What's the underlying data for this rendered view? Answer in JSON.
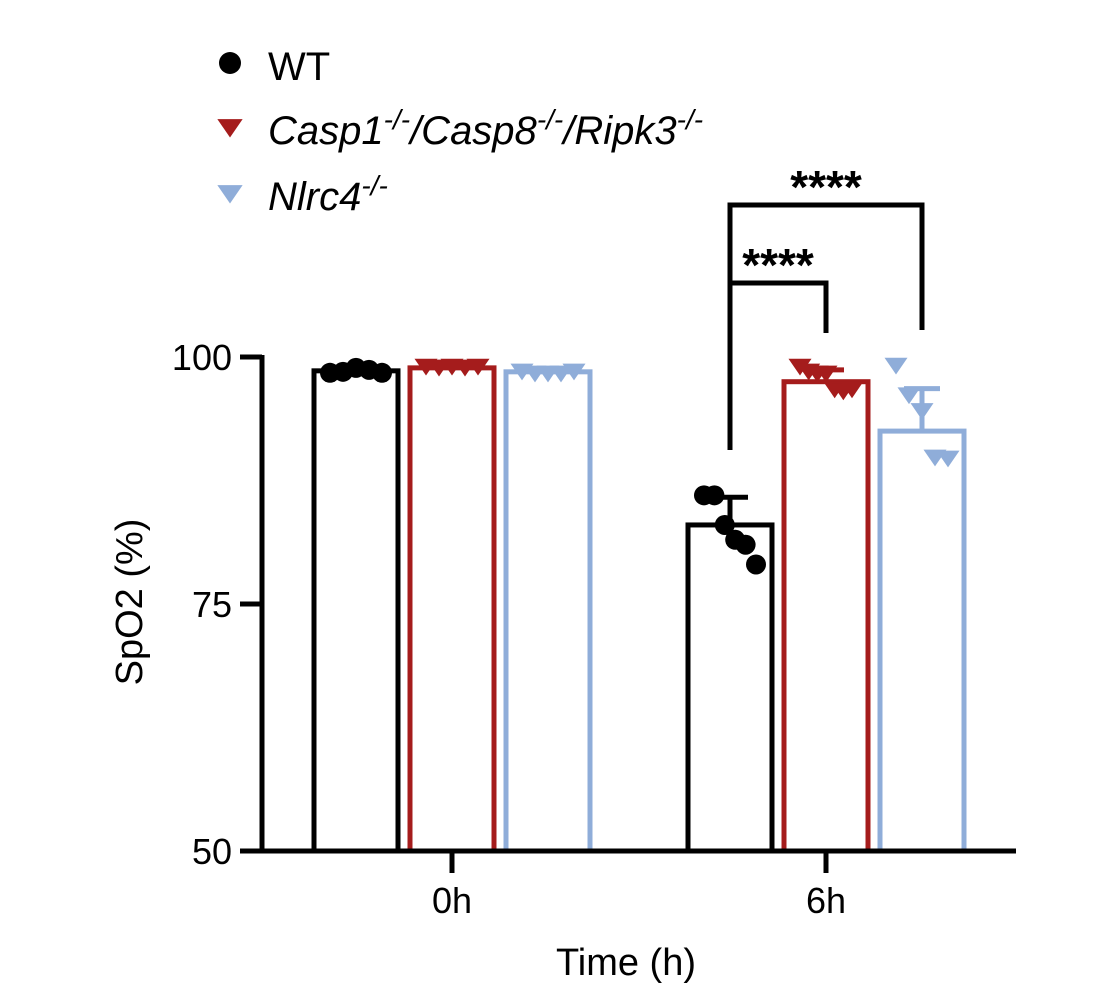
{
  "chart_data": {
    "type": "bar",
    "xlabel": "Time (h)",
    "ylabel": "SpO2 (%)",
    "ylim": [
      50,
      100
    ],
    "yticks": [
      50,
      75,
      100
    ],
    "categories": [
      "0h",
      "6h"
    ],
    "series": [
      {
        "name": "WT",
        "name_parts": [
          {
            "text": "WT",
            "sup": false
          }
        ],
        "color": "#000000",
        "marker": "circle",
        "values": [
          98.6,
          83.0
        ],
        "error": [
          0,
          2.8
        ],
        "points": [
          [
            98.4,
            98.5,
            98.9,
            98.7,
            98.4
          ],
          [
            86.0,
            86.0,
            83.0,
            81.5,
            81.0,
            79.0
          ]
        ]
      },
      {
        "name": "Casp1-/-/Casp8-/-/Ripk3-/-",
        "name_parts": [
          {
            "text": "Casp1",
            "sup": false
          },
          {
            "text": "-/-",
            "sup": true
          },
          {
            "text": "/Casp8",
            "sup": false
          },
          {
            "text": "-/-",
            "sup": true
          },
          {
            "text": "/Ripk3",
            "sup": false
          },
          {
            "text": "-/-",
            "sup": true
          }
        ],
        "color": "#a51c1c",
        "marker": "triangle-down",
        "values": [
          98.9,
          97.5
        ],
        "error": [
          0,
          1.2
        ],
        "points": [
          [
            99.1,
            99.0,
            99.1,
            99.0,
            99.1
          ],
          [
            99.1,
            98.6,
            98.4,
            98.4,
            96.8,
            96.6,
            96.8
          ]
        ]
      },
      {
        "name": "Nlrc4-/-",
        "name_parts": [
          {
            "text": "Nlrc4",
            "sup": false
          },
          {
            "text": "-/-",
            "sup": true
          }
        ],
        "color": "#8fadd9",
        "marker": "triangle-down",
        "values": [
          98.5,
          92.5
        ],
        "error": [
          0,
          4.3
        ],
        "points": [
          [
            98.6,
            98.4,
            98.4,
            98.4,
            98.6
          ],
          [
            99.2,
            96.2,
            94.6,
            89.9,
            89.8
          ]
        ]
      }
    ],
    "significance": [
      {
        "label": "****",
        "from_series": 0,
        "to_series": 1,
        "category": "6h"
      },
      {
        "label": "****",
        "from_series": 0,
        "to_series": 2,
        "category": "6h"
      }
    ],
    "legend": "top-left",
    "grid": false
  }
}
